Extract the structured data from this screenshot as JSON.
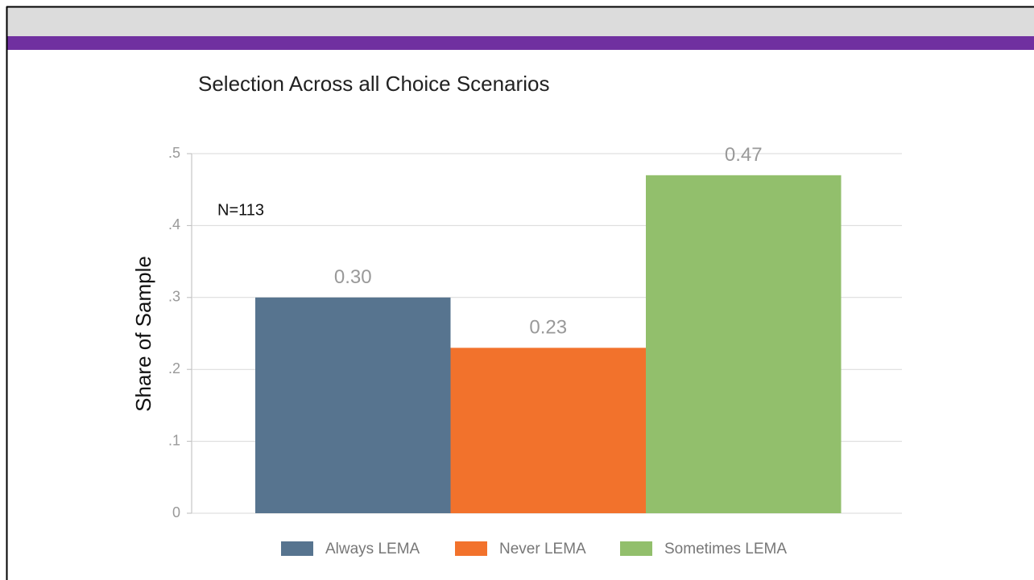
{
  "chart_data": {
    "type": "bar",
    "title": "Selection Across all Choice Scenarios",
    "ylabel": "Share of Sample",
    "annotation": "N=113",
    "categories": [
      "Always LEMA",
      "Never LEMA",
      "Sometimes LEMA"
    ],
    "values": [
      0.3,
      0.23,
      0.47
    ],
    "value_labels": [
      "0.30",
      "0.23",
      "0.47"
    ],
    "colors": [
      "#57748f",
      "#f2722c",
      "#92bf6c"
    ],
    "ylim": [
      0,
      0.5
    ],
    "yticks": [
      0,
      {
        "value": 0.1,
        "label": ".1"
      },
      {
        "value": 0.2,
        "label": ".2"
      },
      {
        "value": 0.3,
        "label": ".3"
      },
      {
        "value": 0.4,
        "label": ".4"
      },
      {
        "value": 0.5,
        "label": ".5"
      }
    ],
    "grid": true,
    "legend": "bottom"
  }
}
